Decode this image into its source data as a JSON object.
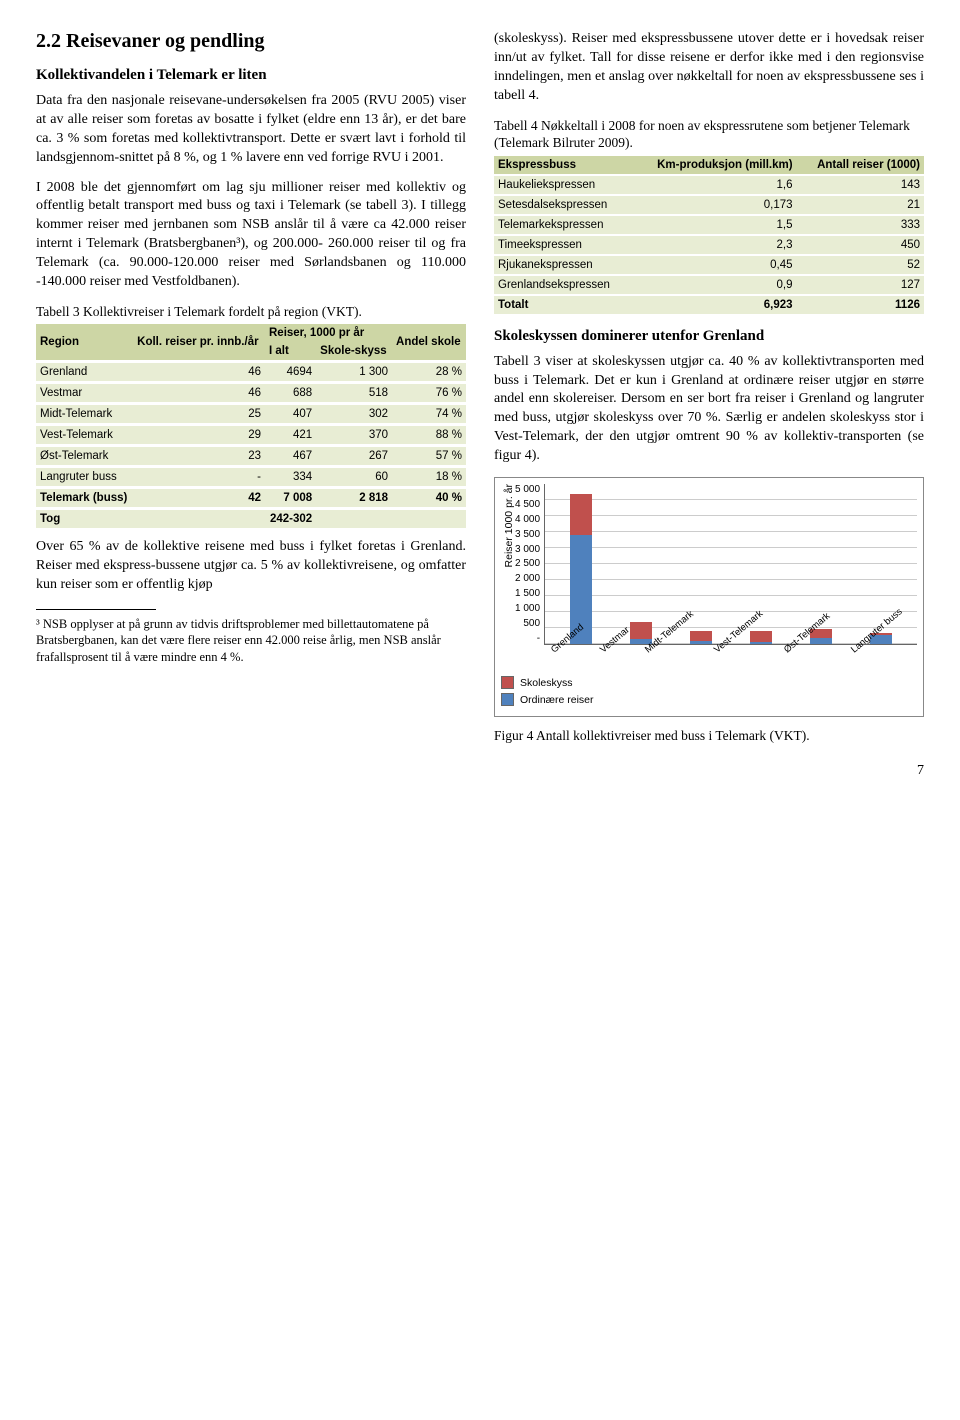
{
  "left": {
    "h1": "2.2  Reisevaner og pendling",
    "h2a": "Kollektivandelen i Telemark er liten",
    "p1": "Data fra den nasjonale reisevane-undersøkelsen fra 2005 (RVU 2005) viser at av alle reiser som foretas av bosatte i fylket (eldre enn 13 år), er det bare ca. 3 % som foretas med kollektivtransport. Dette er svært lavt i forhold til landsgjennom-snittet på 8 %, og 1 % lavere enn ved forrige RVU i 2001.",
    "p2": "I 2008 ble det gjennomført om lag sju millioner reiser med kollektiv og offentlig betalt transport med buss og taxi i Telemark (se tabell 3). I tillegg kommer reiser med jernbanen som NSB anslår til å være ca 42.000 reiser internt i Telemark (Bratsbergbanen³), og 200.000- 260.000 reiser til og fra Telemark (ca. 90.000-120.000 reiser med Sørlandsbanen og 110.000 -140.000 reiser med Vestfoldbanen).",
    "t3cap": "Tabell 3 Kollektivreiser i Telemark fordelt på region (VKT).",
    "t3": {
      "head_region": "Region",
      "head_koll": "Koll. reiser pr. innb./år",
      "head_reiser": "Reiser, 1000 pr år",
      "head_ialt": "I alt",
      "head_skole": "Skole-skyss",
      "head_andel": "Andel skole",
      "rows": [
        {
          "r": "Grenland",
          "k": "46",
          "i": "4694",
          "s": "1 300",
          "a": "28 %"
        },
        {
          "r": "Vestmar",
          "k": "46",
          "i": "688",
          "s": "518",
          "a": "76 %"
        },
        {
          "r": "Midt-Telemark",
          "k": "25",
          "i": "407",
          "s": "302",
          "a": "74 %"
        },
        {
          "r": "Vest-Telemark",
          "k": "29",
          "i": "421",
          "s": "370",
          "a": "88 %"
        },
        {
          "r": "Øst-Telemark",
          "k": "23",
          "i": "467",
          "s": "267",
          "a": "57 %"
        },
        {
          "r": "Langruter buss",
          "k": "-",
          "i": "334",
          "s": "60",
          "a": "18 %"
        },
        {
          "r": "Telemark (buss)",
          "k": "42",
          "i": "7 008",
          "s": "2 818",
          "a": "40 %"
        },
        {
          "r": "Tog",
          "k": "",
          "i": "242-302",
          "s": "",
          "a": ""
        }
      ]
    },
    "p3": "Over 65 % av de kollektive reisene med buss i fylket foretas i Grenland. Reiser med ekspress-bussene utgjør ca. 5 % av kollektivreisene, og omfatter kun reiser som er offentlig kjøp",
    "footnote": "³ NSB opplyser at på grunn av tidvis driftsproblemer med billettautomatene på Bratsbergbanen, kan det være flere reiser enn 42.000 reise årlig, men NSB anslår frafallsprosent til å være mindre enn 4 %."
  },
  "right": {
    "p1": "(skoleskyss). Reiser med ekspressbussene utover dette er i hovedsak reiser inn/ut av fylket. Tall for disse reisene er derfor ikke med i den regionsvise inndelingen, men et anslag over nøkkeltall for noen av ekspressbussene ses i tabell 4.",
    "t4cap": "Tabell 4 Nøkkeltall i 2008 for noen av ekspressrutene som betjener Telemark (Telemark Bilruter 2009).",
    "t4": {
      "head_bus": "Ekspressbuss",
      "head_km": "Km-produksjon (mill.km)",
      "head_ant": "Antall reiser (1000)",
      "rows": [
        {
          "b": "Haukeliekspressen",
          "k": "1,6",
          "a": "143"
        },
        {
          "b": "Setesdalsekspressen",
          "k": "0,173",
          "a": "21"
        },
        {
          "b": "Telemarkekspressen",
          "k": "1,5",
          "a": "333"
        },
        {
          "b": "Timeekspressen",
          "k": "2,3",
          "a": "450"
        },
        {
          "b": "Rjukanekspressen",
          "k": "0,45",
          "a": "52"
        },
        {
          "b": "Grenlandsekspressen",
          "k": "0,9",
          "a": "127"
        },
        {
          "b": "Totalt",
          "k": "6,923",
          "a": "1126"
        }
      ]
    },
    "h2b": "Skoleskyssen dominerer utenfor Grenland",
    "p2": "Tabell 3 viser at skoleskyssen utgjør ca. 40 % av kollektivtransporten med buss i Telemark. Det er kun i Grenland at ordinære reiser utgjør en større andel enn skolereiser. Dersom en ser bort fra reiser i Grenland og langruter med buss, utgjør skoleskyss over 70 %. Særlig er andelen skoleskyss stor i Vest-Telemark, der den utgjør omtrent 90 % av kollektiv-transporten (se figur 4).",
    "fig": {
      "ylabel": "Reiser 1000 pr. år",
      "ymax": 5000,
      "ytick_step": 500,
      "yticks": [
        "5 000",
        "4 500",
        "4 000",
        "3 500",
        "3 000",
        "2 500",
        "2 000",
        "1 500",
        "1 000",
        "500",
        "-"
      ],
      "categories": [
        "Grenland",
        "Vestmar",
        "Midt-Telemark",
        "Vest-Telemark",
        "Øst-Telemark",
        "Langruter buss"
      ],
      "ordin": [
        3394,
        170,
        105,
        51,
        200,
        274
      ],
      "skole": [
        1300,
        518,
        302,
        370,
        267,
        60
      ],
      "color_skole": "#c0504d",
      "color_ordin": "#4f81bd",
      "legend_sk": "Skoleskyss",
      "legend_or": "Ordinære reiser"
    },
    "figcap": "Figur 4 Antall kollektivreiser med buss i Telemark (VKT).",
    "pagenum": "7"
  }
}
